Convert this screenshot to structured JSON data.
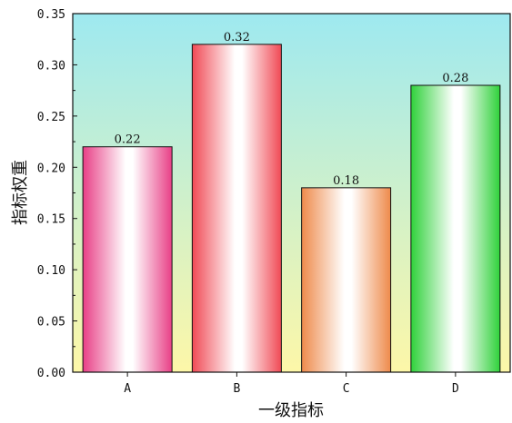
{
  "chart_data": {
    "type": "bar",
    "title": "",
    "xlabel": "一级指标",
    "ylabel": "指标权重",
    "categories": [
      "A",
      "B",
      "C",
      "D"
    ],
    "values": [
      0.22,
      0.32,
      0.18,
      0.28
    ],
    "data_labels": [
      "0.22",
      "0.32",
      "0.18",
      "0.28"
    ],
    "ylim": [
      0,
      0.35
    ],
    "yticks": [
      0.0,
      0.05,
      0.1,
      0.15,
      0.2,
      0.25,
      0.3,
      0.35
    ],
    "ytick_labels": [
      "0.00",
      "0.05",
      "0.10",
      "0.15",
      "0.20",
      "0.25",
      "0.30",
      "0.35"
    ],
    "grid": false,
    "legend": "none",
    "bar_colors": [
      "#e83f86",
      "#f04a55",
      "#ee8a4b",
      "#2fd13a"
    ],
    "background_gradient": [
      "#9ee9f0",
      "#fdf7a8"
    ]
  }
}
